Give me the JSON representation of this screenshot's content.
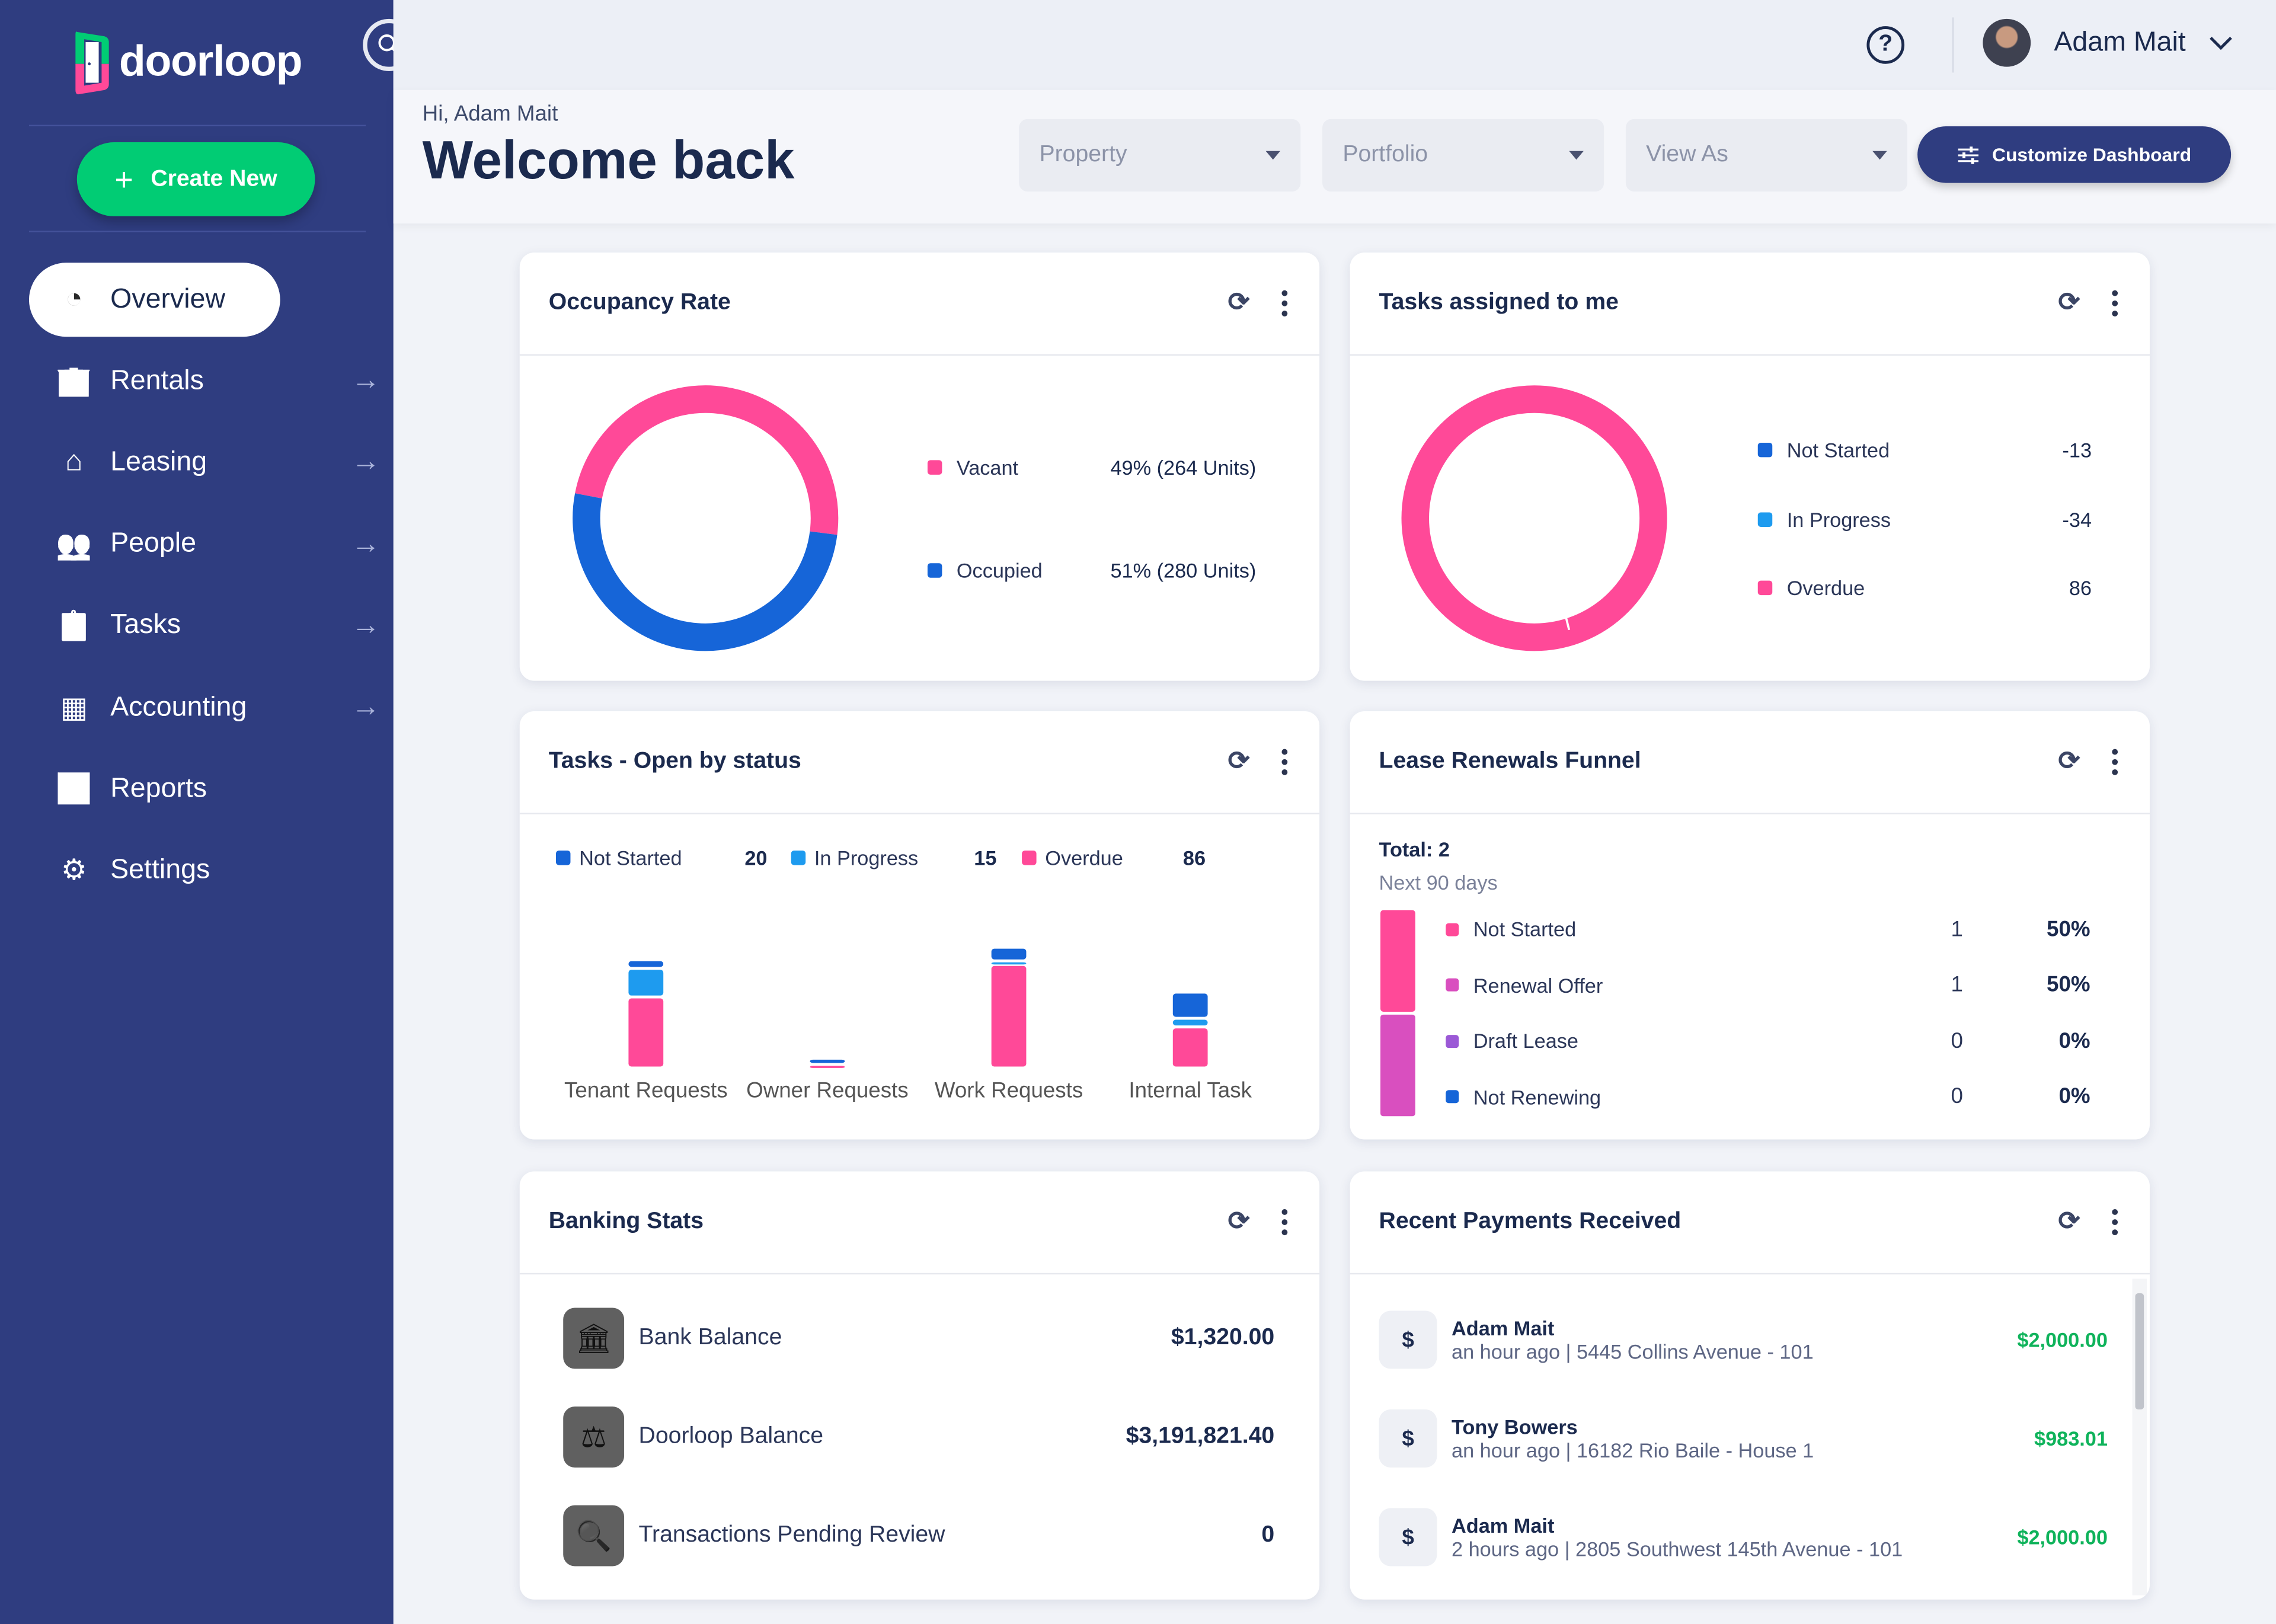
{
  "brand": {
    "name": "doorloop"
  },
  "sidebar": {
    "create_label": "Create New",
    "items": [
      {
        "label": "Overview",
        "icon": "pie-chart-icon"
      },
      {
        "label": "Rentals",
        "icon": "building-icon"
      },
      {
        "label": "Leasing",
        "icon": "house-icon"
      },
      {
        "label": "People",
        "icon": "people-icon"
      },
      {
        "label": "Tasks",
        "icon": "clipboard-icon"
      },
      {
        "label": "Accounting",
        "icon": "calculator-icon"
      },
      {
        "label": "Reports",
        "icon": "report-icon"
      },
      {
        "label": "Settings",
        "icon": "gear-icon"
      }
    ]
  },
  "topbar": {
    "user_name": "Adam Mait"
  },
  "header": {
    "greeting": "Hi, Adam Mait",
    "title": "Welcome back",
    "filters": [
      {
        "placeholder": "Property"
      },
      {
        "placeholder": "Portfolio"
      },
      {
        "placeholder": "View As"
      }
    ],
    "customize_label": "Customize Dashboard"
  },
  "occupancy": {
    "title": "Occupancy Rate",
    "items": [
      {
        "label": "Vacant",
        "value": "49% (264 Units)",
        "percent": 49,
        "color": "#ff4998"
      },
      {
        "label": "Occupied",
        "value": "51% (280 Units)",
        "percent": 51,
        "color": "#1665d8"
      }
    ]
  },
  "tasks_me": {
    "title": "Tasks assigned to me",
    "items": [
      {
        "label": "Not Started",
        "value": "-13",
        "color": "#1665d8"
      },
      {
        "label": "In Progress",
        "value": "-34",
        "color": "#1e9bef"
      },
      {
        "label": "Overdue",
        "value": "86",
        "color": "#ff4998"
      }
    ]
  },
  "tasks_status": {
    "title": "Tasks - Open by status",
    "legend": [
      {
        "label": "Not Started",
        "value": "20",
        "color": "#1665d8"
      },
      {
        "label": "In Progress",
        "value": "15",
        "color": "#1e9bef"
      },
      {
        "label": "Overdue",
        "value": "86",
        "color": "#ff4998"
      }
    ]
  },
  "chart_data": {
    "type": "bar",
    "stacked": true,
    "categories": [
      "Tenant Requests",
      "Owner Requests",
      "Work Requests",
      "Internal Task"
    ],
    "series": [
      {
        "name": "Overdue",
        "values": [
          28,
          1,
          41,
          16
        ],
        "color": "#ff4998"
      },
      {
        "name": "In Progress",
        "values": [
          11,
          0,
          1,
          3
        ],
        "color": "#1e9bef"
      },
      {
        "name": "Not Started",
        "values": [
          3,
          2,
          5,
          10
        ],
        "color": "#1665d8"
      }
    ],
    "grid": false
  },
  "funnel": {
    "title": "Lease Renewals Funnel",
    "total": "Total: 2",
    "period": "Next 90 days",
    "rows": [
      {
        "label": "Not Started",
        "count": "1",
        "pct": "50%",
        "color": "#ff4998"
      },
      {
        "label": "Renewal Offer",
        "count": "1",
        "pct": "50%",
        "color": "#d94fbf"
      },
      {
        "label": "Draft Lease",
        "count": "0",
        "pct": "0%",
        "color": "#9b59d6"
      },
      {
        "label": "Not Renewing",
        "count": "0",
        "pct": "0%",
        "color": "#1665d8"
      }
    ]
  },
  "banking": {
    "title": "Banking Stats",
    "rows": [
      {
        "label": "Bank Balance",
        "value": "$1,320.00",
        "icon": "bank-icon"
      },
      {
        "label": "Doorloop Balance",
        "value": "$3,191,821.40",
        "icon": "scale-icon"
      },
      {
        "label": "Transactions Pending Review",
        "value": "0",
        "icon": "search-icon"
      }
    ]
  },
  "payments": {
    "title": "Recent Payments Received",
    "rows": [
      {
        "name": "Adam Mait",
        "sub": "an hour ago | 5445 Collins Avenue - 101",
        "amount": "$2,000.00"
      },
      {
        "name": "Tony Bowers",
        "sub": "an hour ago | 16182 Rio Baile - House 1",
        "amount": "$983.01"
      },
      {
        "name": "Adam Mait",
        "sub": "2 hours ago | 2805 Southwest 145th Avenue - 101",
        "amount": "$2,000.00"
      }
    ]
  }
}
